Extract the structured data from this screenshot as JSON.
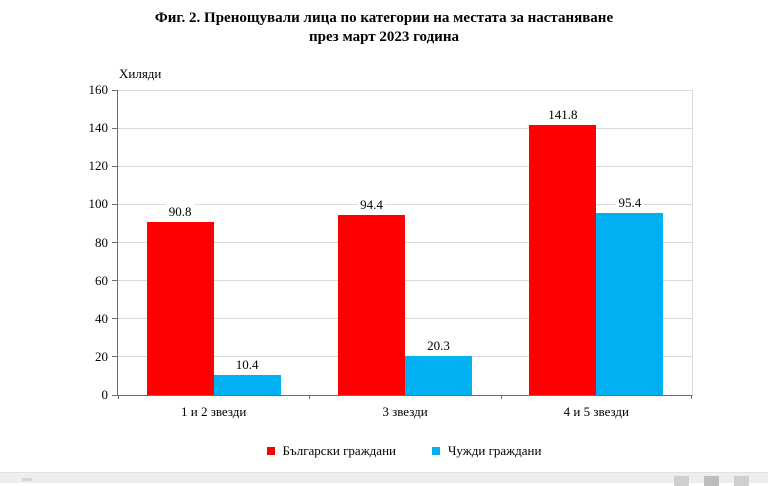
{
  "title": {
    "line1": "Фиг. 2. Пренощували лица по категории на местата за настаняване",
    "line2": "през март 2023 година"
  },
  "chart_data": {
    "type": "bar",
    "unit_label": "Хиляди",
    "categories": [
      "1 и 2 звезди",
      "3 звезди",
      "4 и 5 звезди"
    ],
    "series": [
      {
        "name": "Български граждани",
        "color": "#FF0000",
        "values": [
          90.8,
          94.4,
          141.8
        ]
      },
      {
        "name": "Чужди граждани",
        "color": "#00B0F0",
        "values": [
          10.4,
          20.3,
          95.4
        ]
      }
    ],
    "ylim": [
      0,
      160
    ],
    "yticks": [
      0,
      20,
      40,
      60,
      80,
      100,
      120,
      140,
      160
    ],
    "grid": true,
    "legend_position": "bottom",
    "value_labels": true
  },
  "colors": {
    "bar_red": "#FF0000",
    "bar_blue": "#00B0F0",
    "gridline": "#d9d9d9",
    "axis": "#6e6e6e"
  }
}
